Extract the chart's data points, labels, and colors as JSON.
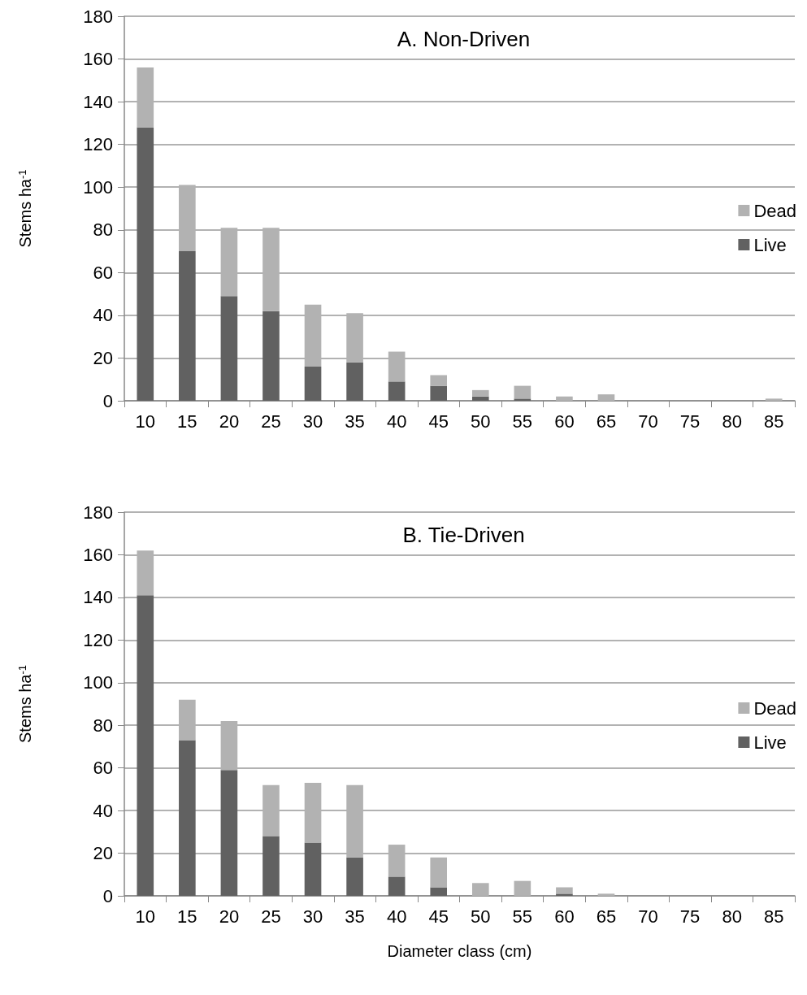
{
  "chart_data": [
    {
      "type": "bar",
      "title": "A. Non-Driven",
      "ylabel": "Stems ha$^{-1}$",
      "stacked": true,
      "legend": "right",
      "grid": "y",
      "categories": [
        "10",
        "15",
        "20",
        "25",
        "30",
        "35",
        "40",
        "45",
        "50",
        "55",
        "60",
        "65",
        "70",
        "75",
        "80",
        "85"
      ],
      "ylim": [
        0,
        180
      ],
      "yticks": [
        0,
        20,
        40,
        60,
        80,
        100,
        120,
        140,
        160,
        180
      ],
      "series": [
        {
          "name": "Live",
          "color": "#616161",
          "values": [
            128,
            70,
            49,
            42,
            16,
            18,
            9,
            7,
            2,
            1,
            0,
            0,
            0,
            0,
            0,
            0
          ]
        },
        {
          "name": "Dead",
          "color": "#b2b2b2",
          "values": [
            28,
            31,
            32,
            39,
            29,
            23,
            14,
            5,
            3,
            6,
            2,
            3,
            0,
            0,
            0,
            1
          ]
        }
      ]
    },
    {
      "type": "bar",
      "title": "B. Tie-Driven",
      "ylabel": "Stems ha$^{-1}$",
      "xlabel": "Diameter class (cm)",
      "stacked": true,
      "legend": "right",
      "grid": "y",
      "categories": [
        "10",
        "15",
        "20",
        "25",
        "30",
        "35",
        "40",
        "45",
        "50",
        "55",
        "60",
        "65",
        "70",
        "75",
        "80",
        "85"
      ],
      "ylim": [
        0,
        180
      ],
      "yticks": [
        0,
        20,
        40,
        60,
        80,
        100,
        120,
        140,
        160,
        180
      ],
      "series": [
        {
          "name": "Live",
          "color": "#616161",
          "values": [
            141,
            73,
            59,
            28,
            25,
            18,
            9,
            4,
            0,
            0,
            1,
            0,
            0,
            0,
            0,
            0
          ]
        },
        {
          "name": "Dead",
          "color": "#b2b2b2",
          "values": [
            21,
            19,
            23,
            24,
            28,
            34,
            15,
            14,
            6,
            7,
            3,
            1,
            0,
            0,
            0,
            0
          ]
        }
      ]
    }
  ]
}
